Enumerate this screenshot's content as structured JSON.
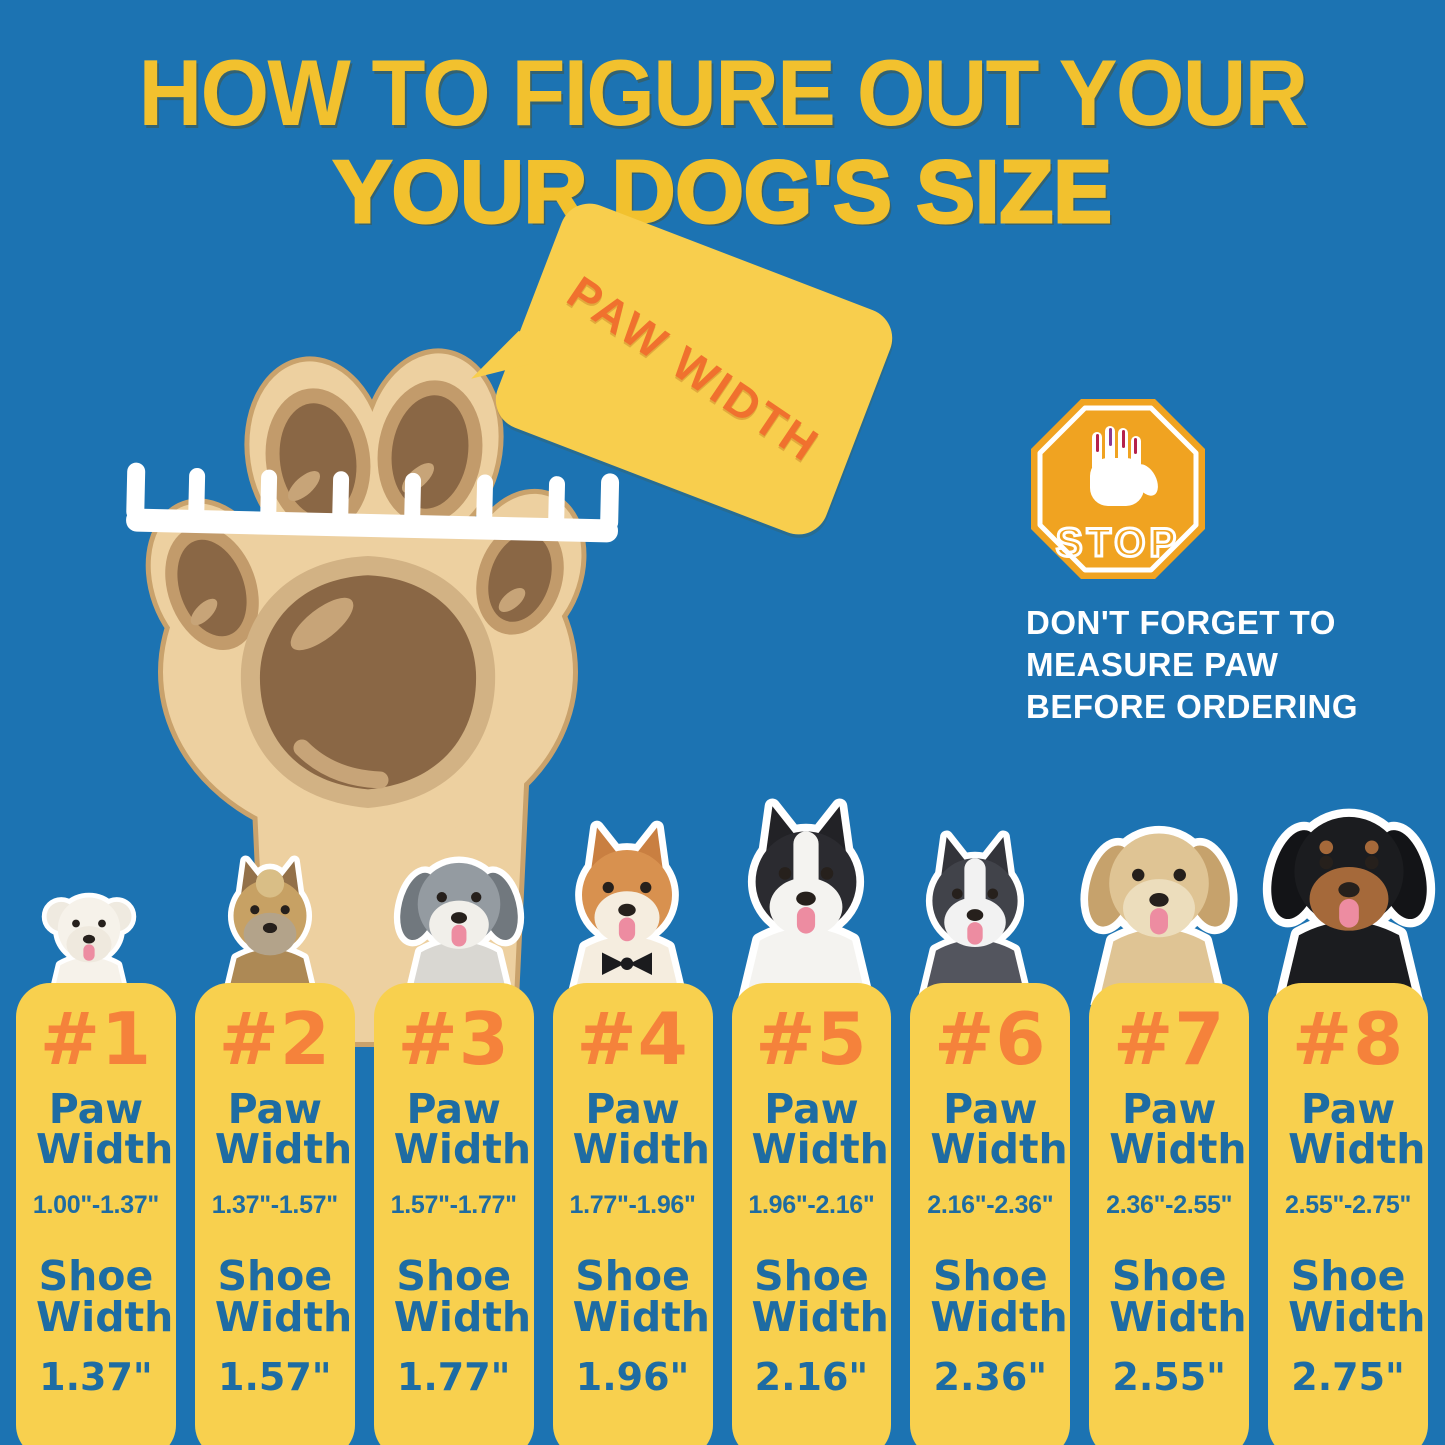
{
  "colors": {
    "bg": "#1C73B2",
    "column_yellow": "#F8D04E",
    "bubble_yellow": "#F8CE4D",
    "title_yellow": "#F2C12E",
    "number_orange": "#F5823B",
    "bubble_text_orange": "#F0712E",
    "size_text_blue": "#1E6CA3",
    "stop_sign_orange": "#F0A321",
    "reminder_white": "#FFFFFF",
    "paw_light": "#EDD0A0",
    "paw_outline": "#C9A26C",
    "pad_dark": "#8A6745",
    "pad_ring": "#C29B6B",
    "pad_ring_light": "#D2B284",
    "pad_highlight": "#C7A478"
  },
  "title": {
    "line1": "HOW TO FIGURE OUT YOUR",
    "line2": "YOUR DOG'S SIZE"
  },
  "bubble": {
    "label": "PAW WIDTH"
  },
  "stop_sign": {
    "label": "STOP"
  },
  "reminder": {
    "line1": "DON'T FORGET TO",
    "line2": "MEASURE PAW",
    "line3": "BEFORE ORDERING"
  },
  "labels": {
    "paw": "Paw Width",
    "shoe": "Shoe Width"
  },
  "sizes": [
    {
      "number": "#1",
      "paw_range": "1.00\"-1.37\"",
      "shoe_width": "1.37\"",
      "dog": "bichon-frise"
    },
    {
      "number": "#2",
      "paw_range": "1.37\"-1.57\"",
      "shoe_width": "1.57\"",
      "dog": "yorkshire-terrier"
    },
    {
      "number": "#3",
      "paw_range": "1.57\"-1.77\"",
      "shoe_width": "1.77\"",
      "dog": "bearded-collie"
    },
    {
      "number": "#4",
      "paw_range": "1.77\"-1.96\"",
      "shoe_width": "1.96\"",
      "dog": "shiba-inu"
    },
    {
      "number": "#5",
      "paw_range": "1.96\"-2.16\"",
      "shoe_width": "2.16\"",
      "dog": "border-collie"
    },
    {
      "number": "#6",
      "paw_range": "2.16\"-2.36\"",
      "shoe_width": "2.36\"",
      "dog": "husky"
    },
    {
      "number": "#7",
      "paw_range": "2.36\"-2.55\"",
      "shoe_width": "2.55\"",
      "dog": "golden-retriever"
    },
    {
      "number": "#8",
      "paw_range": "2.55\"-2.75\"",
      "shoe_width": "2.75\"",
      "dog": "rottweiler"
    }
  ],
  "dogs": [
    {
      "name": "bichon-frise",
      "ear": "round",
      "ear_color": "#EFEAE0",
      "head": "#F6F2EA",
      "chest": "#F6F2EA",
      "muzzle_bg": "#EFE9DE",
      "tongue": true
    },
    {
      "name": "yorkshire-terrier",
      "ear": "point",
      "ear_color": "#93714A",
      "head": "#C7A164",
      "chest": "#AD8955",
      "topknot": "#D9BE86",
      "muzzle_bg": "#B3A38A",
      "tongue": false
    },
    {
      "name": "bearded-collie",
      "ear": "floppy",
      "ear_color": "#71787E",
      "head": "#949BA1",
      "chest": "#D9D7D2",
      "muzzle_bg": "#F1EFEA",
      "tongue": true
    },
    {
      "name": "shiba-inu",
      "ear": "point",
      "ear_color": "#C97F41",
      "head": "#D8914F",
      "chest": "#F5EDDF",
      "muzzle_bg": "#F5EDDF",
      "tongue": true,
      "accessory": "bowtie"
    },
    {
      "name": "border-collie",
      "ear": "point",
      "ear_color": "#222226",
      "head": "#2B2B30",
      "chest": "#F4F3F0",
      "blaze": "#F4F3F0",
      "muzzle_bg": "#F4F3F0",
      "tongue": true
    },
    {
      "name": "husky",
      "ear": "point",
      "ear_color": "#33343A",
      "head": "#41434A",
      "chest": "#53555E",
      "blaze": "#F2F2F2",
      "muzzle_bg": "#F2F2F2",
      "tongue": true
    },
    {
      "name": "golden-retriever",
      "ear": "floppy",
      "ear_color": "#C6A26C",
      "head": "#DFC494",
      "chest": "#DFC494",
      "muzzle_bg": "#ECDDBC",
      "tongue": true
    },
    {
      "name": "rottweiler",
      "ear": "floppy",
      "ear_color": "#131417",
      "head": "#1B1C1F",
      "chest": "#1B1C1F",
      "brows": "#A5693A",
      "muzzle_bg": "#A5693A",
      "tongue": true
    }
  ]
}
